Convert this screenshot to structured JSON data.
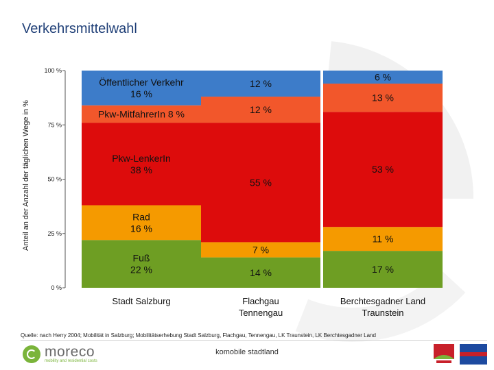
{
  "title": "Verkehrsmittelwahl",
  "colors": {
    "fuss": "#6e9e23",
    "rad": "#f59a00",
    "lenker": "#dd0c0c",
    "mitfahrer": "#f2572b",
    "oev": "#3d7cc9",
    "axis": "#555555"
  },
  "chart_data": {
    "type": "bar",
    "stacked": true,
    "title": "Verkehrsmittelwahl",
    "ylabel": "Anteil an der Anzahl der täglichen Wege in %",
    "xlabel": "",
    "ylim": [
      0,
      100
    ],
    "yticks": [
      {
        "value": 0,
        "label": "0 %"
      },
      {
        "value": 25,
        "label": "25 %"
      },
      {
        "value": 50,
        "label": "50 %"
      },
      {
        "value": 75,
        "label": "75 %"
      },
      {
        "value": 100,
        "label": "100 %"
      }
    ],
    "categories": [
      {
        "name": "Stadt Salzburg",
        "lines": [
          "Stadt Salzburg"
        ]
      },
      {
        "name": "Flachgau Tennengau",
        "lines": [
          "Flachgau",
          "Tennengau"
        ]
      },
      {
        "name": "Berchtesgadner Land Traunstein",
        "lines": [
          "Berchtesgadner Land",
          "Traunstein"
        ]
      }
    ],
    "series": [
      {
        "name": "Fuß",
        "color_key": "fuss",
        "values": [
          22,
          14,
          17
        ],
        "labels": [
          [
            "Fuß",
            "22 %"
          ],
          [
            "14 %"
          ],
          [
            "17 %"
          ]
        ]
      },
      {
        "name": "Rad",
        "color_key": "rad",
        "values": [
          16,
          7,
          11
        ],
        "labels": [
          [
            "Rad",
            "16 %"
          ],
          [
            "7 %"
          ],
          [
            "11 %"
          ]
        ]
      },
      {
        "name": "Pkw-LenkerIn",
        "color_key": "lenker",
        "values": [
          38,
          55,
          53
        ],
        "labels": [
          [
            "Pkw-LenkerIn",
            "38 %"
          ],
          [
            "55 %"
          ],
          [
            "53 %"
          ]
        ]
      },
      {
        "name": "Pkw-MitfahrerIn",
        "color_key": "mitfahrer",
        "values": [
          8,
          12,
          13
        ],
        "labels": [
          [
            "Pkw-MitfahrerIn 8 %"
          ],
          [
            "12 %"
          ],
          [
            "13 %"
          ]
        ]
      },
      {
        "name": "Öffentlicher Verkehr",
        "color_key": "oev",
        "values": [
          16,
          12,
          6
        ],
        "labels": [
          [
            "Öffentlicher Verkehr",
            "16 %"
          ],
          [
            "12 %"
          ],
          [
            "6 %"
          ]
        ]
      }
    ]
  },
  "footer": {
    "source": "Quelle: nach Herry 2004; Mobilität in Salzburg; Mobilitätserhebung Stadt Salzburg, Flachgau, Tennengau, LK Traunstein, LK Berchtesgadner Land",
    "website": "komobile stadtland",
    "logo_name": "moreco",
    "logo_tagline": "mobility and residential costs"
  }
}
